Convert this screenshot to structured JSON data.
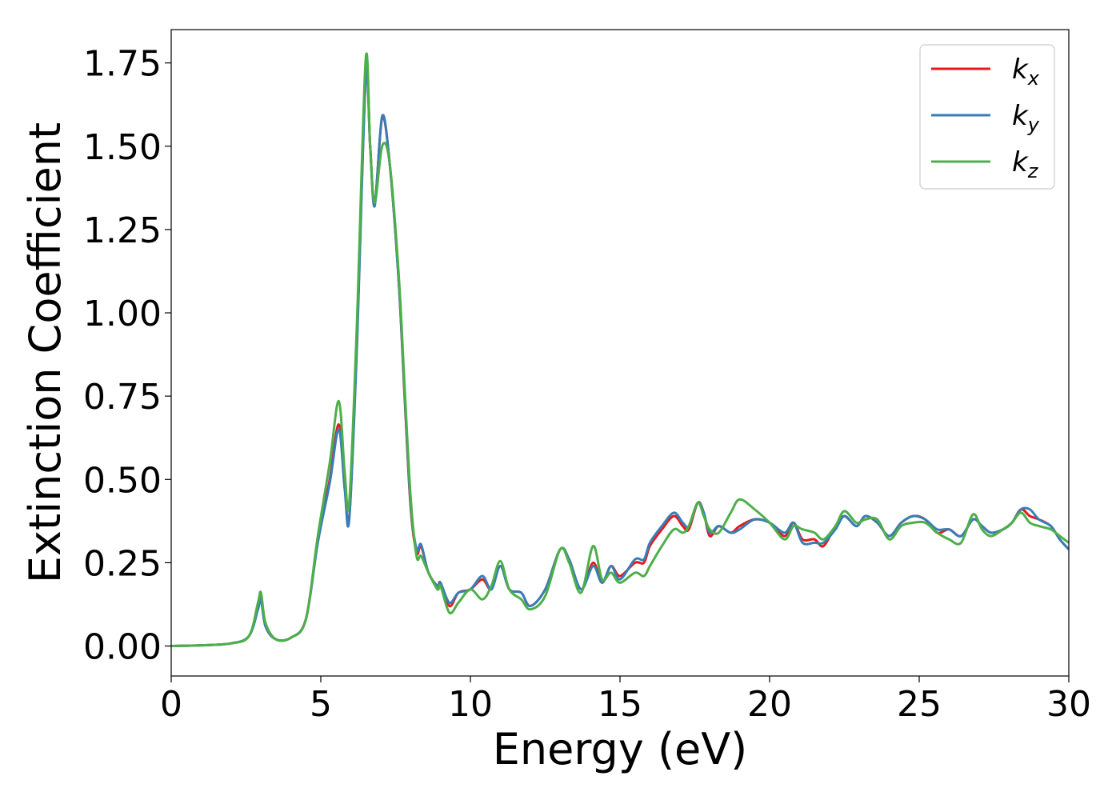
{
  "chart_data": {
    "type": "line",
    "title": "",
    "xlabel": "Energy (eV)",
    "ylabel": "Extinction Coefficient",
    "xlim": [
      0,
      30
    ],
    "ylim": [
      -0.09,
      1.85
    ],
    "xticks": [
      0,
      5,
      10,
      15,
      20,
      25,
      30
    ],
    "xtick_labels": [
      "0",
      "5",
      "10",
      "15",
      "20",
      "25",
      "30"
    ],
    "yticks": [
      0.0,
      0.25,
      0.5,
      0.75,
      1.0,
      1.25,
      1.5,
      1.75
    ],
    "ytick_labels": [
      "0.00",
      "0.25",
      "0.50",
      "0.75",
      "1.00",
      "1.25",
      "1.50",
      "1.75"
    ],
    "grid": false,
    "legend_position": "top-right",
    "series": [
      {
        "name": "k_x",
        "label_base": "k",
        "label_sub": "x",
        "color": "#e41a1c",
        "points": [
          [
            0,
            0.0
          ],
          [
            1,
            0.002
          ],
          [
            2,
            0.008
          ],
          [
            2.6,
            0.03
          ],
          [
            2.9,
            0.12
          ],
          [
            3.0,
            0.15
          ],
          [
            3.15,
            0.06
          ],
          [
            3.5,
            0.02
          ],
          [
            4.0,
            0.025
          ],
          [
            4.5,
            0.08
          ],
          [
            4.9,
            0.32
          ],
          [
            5.3,
            0.5
          ],
          [
            5.6,
            0.665
          ],
          [
            5.8,
            0.48
          ],
          [
            5.95,
            0.385
          ],
          [
            6.2,
            0.9
          ],
          [
            6.5,
            1.71
          ],
          [
            6.65,
            1.5
          ],
          [
            6.8,
            1.325
          ],
          [
            7.05,
            1.585
          ],
          [
            7.3,
            1.45
          ],
          [
            7.6,
            1.1
          ],
          [
            7.8,
            0.75
          ],
          [
            8.0,
            0.42
          ],
          [
            8.2,
            0.28
          ],
          [
            8.35,
            0.3
          ],
          [
            8.6,
            0.22
          ],
          [
            8.9,
            0.18
          ],
          [
            9.0,
            0.19
          ],
          [
            9.3,
            0.12
          ],
          [
            9.6,
            0.16
          ],
          [
            10.0,
            0.17
          ],
          [
            10.4,
            0.2
          ],
          [
            10.7,
            0.17
          ],
          [
            11.0,
            0.24
          ],
          [
            11.3,
            0.17
          ],
          [
            11.7,
            0.16
          ],
          [
            12.0,
            0.12
          ],
          [
            12.5,
            0.17
          ],
          [
            13.0,
            0.29
          ],
          [
            13.3,
            0.26
          ],
          [
            13.7,
            0.17
          ],
          [
            14.1,
            0.25
          ],
          [
            14.4,
            0.19
          ],
          [
            14.7,
            0.24
          ],
          [
            15.0,
            0.21
          ],
          [
            15.5,
            0.25
          ],
          [
            15.8,
            0.25
          ],
          [
            16.0,
            0.3
          ],
          [
            16.4,
            0.35
          ],
          [
            16.8,
            0.39
          ],
          [
            17.1,
            0.36
          ],
          [
            17.3,
            0.35
          ],
          [
            17.6,
            0.43
          ],
          [
            17.8,
            0.4
          ],
          [
            18.0,
            0.33
          ],
          [
            18.3,
            0.36
          ],
          [
            18.7,
            0.34
          ],
          [
            19.0,
            0.36
          ],
          [
            19.5,
            0.38
          ],
          [
            20.0,
            0.37
          ],
          [
            20.5,
            0.33
          ],
          [
            20.8,
            0.37
          ],
          [
            21.1,
            0.32
          ],
          [
            21.5,
            0.32
          ],
          [
            21.8,
            0.3
          ],
          [
            22.2,
            0.36
          ],
          [
            22.5,
            0.39
          ],
          [
            22.9,
            0.36
          ],
          [
            23.2,
            0.39
          ],
          [
            23.6,
            0.37
          ],
          [
            24.0,
            0.33
          ],
          [
            24.4,
            0.37
          ],
          [
            24.8,
            0.39
          ],
          [
            25.2,
            0.38
          ],
          [
            25.6,
            0.34
          ],
          [
            26.0,
            0.35
          ],
          [
            26.4,
            0.33
          ],
          [
            26.8,
            0.38
          ],
          [
            27.1,
            0.36
          ],
          [
            27.4,
            0.34
          ],
          [
            27.8,
            0.35
          ],
          [
            28.1,
            0.37
          ],
          [
            28.4,
            0.41
          ],
          [
            28.7,
            0.39
          ],
          [
            29.0,
            0.38
          ],
          [
            29.4,
            0.36
          ],
          [
            29.7,
            0.32
          ],
          [
            30.0,
            0.29
          ]
        ]
      },
      {
        "name": "k_y",
        "label_base": "k",
        "label_sub": "y",
        "color": "#377eb8",
        "points": [
          [
            0,
            0.0
          ],
          [
            1,
            0.002
          ],
          [
            2,
            0.008
          ],
          [
            2.6,
            0.03
          ],
          [
            2.9,
            0.11
          ],
          [
            3.0,
            0.14
          ],
          [
            3.15,
            0.06
          ],
          [
            3.5,
            0.02
          ],
          [
            4.0,
            0.025
          ],
          [
            4.5,
            0.08
          ],
          [
            4.9,
            0.31
          ],
          [
            5.3,
            0.49
          ],
          [
            5.6,
            0.65
          ],
          [
            5.8,
            0.47
          ],
          [
            5.95,
            0.38
          ],
          [
            6.2,
            0.88
          ],
          [
            6.5,
            1.7
          ],
          [
            6.65,
            1.5
          ],
          [
            6.8,
            1.32
          ],
          [
            7.05,
            1.59
          ],
          [
            7.3,
            1.45
          ],
          [
            7.6,
            1.1
          ],
          [
            7.8,
            0.76
          ],
          [
            8.0,
            0.43
          ],
          [
            8.2,
            0.29
          ],
          [
            8.35,
            0.305
          ],
          [
            8.6,
            0.22
          ],
          [
            8.9,
            0.18
          ],
          [
            9.0,
            0.19
          ],
          [
            9.3,
            0.13
          ],
          [
            9.6,
            0.16
          ],
          [
            10.0,
            0.17
          ],
          [
            10.4,
            0.21
          ],
          [
            10.7,
            0.17
          ],
          [
            11.0,
            0.24
          ],
          [
            11.3,
            0.17
          ],
          [
            11.7,
            0.16
          ],
          [
            12.0,
            0.12
          ],
          [
            12.5,
            0.17
          ],
          [
            13.0,
            0.29
          ],
          [
            13.3,
            0.26
          ],
          [
            13.7,
            0.17
          ],
          [
            14.1,
            0.24
          ],
          [
            14.4,
            0.19
          ],
          [
            14.7,
            0.24
          ],
          [
            15.0,
            0.2
          ],
          [
            15.5,
            0.26
          ],
          [
            15.8,
            0.26
          ],
          [
            16.0,
            0.31
          ],
          [
            16.4,
            0.36
          ],
          [
            16.8,
            0.4
          ],
          [
            17.1,
            0.37
          ],
          [
            17.3,
            0.36
          ],
          [
            17.6,
            0.43
          ],
          [
            17.8,
            0.4
          ],
          [
            18.0,
            0.34
          ],
          [
            18.3,
            0.36
          ],
          [
            18.7,
            0.34
          ],
          [
            19.0,
            0.35
          ],
          [
            19.5,
            0.38
          ],
          [
            20.0,
            0.37
          ],
          [
            20.5,
            0.34
          ],
          [
            20.8,
            0.37
          ],
          [
            21.1,
            0.31
          ],
          [
            21.5,
            0.31
          ],
          [
            21.8,
            0.31
          ],
          [
            22.2,
            0.35
          ],
          [
            22.5,
            0.39
          ],
          [
            22.9,
            0.36
          ],
          [
            23.2,
            0.39
          ],
          [
            23.6,
            0.37
          ],
          [
            24.0,
            0.33
          ],
          [
            24.4,
            0.37
          ],
          [
            24.8,
            0.39
          ],
          [
            25.2,
            0.38
          ],
          [
            25.6,
            0.35
          ],
          [
            26.0,
            0.35
          ],
          [
            26.4,
            0.33
          ],
          [
            26.8,
            0.38
          ],
          [
            27.1,
            0.36
          ],
          [
            27.4,
            0.34
          ],
          [
            27.8,
            0.35
          ],
          [
            28.1,
            0.37
          ],
          [
            28.4,
            0.41
          ],
          [
            28.7,
            0.41
          ],
          [
            29.0,
            0.38
          ],
          [
            29.4,
            0.36
          ],
          [
            29.7,
            0.32
          ],
          [
            30.0,
            0.29
          ]
        ]
      },
      {
        "name": "k_z",
        "label_base": "k",
        "label_sub": "z",
        "color": "#4daf4a",
        "points": [
          [
            0,
            0.0
          ],
          [
            1,
            0.002
          ],
          [
            2,
            0.008
          ],
          [
            2.6,
            0.03
          ],
          [
            2.9,
            0.13
          ],
          [
            3.0,
            0.16
          ],
          [
            3.15,
            0.07
          ],
          [
            3.5,
            0.02
          ],
          [
            4.0,
            0.025
          ],
          [
            4.5,
            0.08
          ],
          [
            4.9,
            0.33
          ],
          [
            5.3,
            0.55
          ],
          [
            5.6,
            0.735
          ],
          [
            5.8,
            0.52
          ],
          [
            5.95,
            0.43
          ],
          [
            6.2,
            0.95
          ],
          [
            6.5,
            1.76
          ],
          [
            6.65,
            1.5
          ],
          [
            6.8,
            1.33
          ],
          [
            7.05,
            1.5
          ],
          [
            7.3,
            1.45
          ],
          [
            7.6,
            1.12
          ],
          [
            7.8,
            0.78
          ],
          [
            8.0,
            0.45
          ],
          [
            8.2,
            0.27
          ],
          [
            8.35,
            0.27
          ],
          [
            8.6,
            0.22
          ],
          [
            8.9,
            0.17
          ],
          [
            9.0,
            0.18
          ],
          [
            9.3,
            0.1
          ],
          [
            9.6,
            0.13
          ],
          [
            10.0,
            0.17
          ],
          [
            10.4,
            0.14
          ],
          [
            10.7,
            0.18
          ],
          [
            11.0,
            0.255
          ],
          [
            11.3,
            0.17
          ],
          [
            11.7,
            0.14
          ],
          [
            12.0,
            0.11
          ],
          [
            12.5,
            0.15
          ],
          [
            13.0,
            0.29
          ],
          [
            13.3,
            0.25
          ],
          [
            13.7,
            0.16
          ],
          [
            14.1,
            0.3
          ],
          [
            14.4,
            0.2
          ],
          [
            14.7,
            0.22
          ],
          [
            15.0,
            0.19
          ],
          [
            15.5,
            0.22
          ],
          [
            15.8,
            0.21
          ],
          [
            16.0,
            0.24
          ],
          [
            16.4,
            0.3
          ],
          [
            16.8,
            0.35
          ],
          [
            17.1,
            0.34
          ],
          [
            17.3,
            0.36
          ],
          [
            17.6,
            0.43
          ],
          [
            17.8,
            0.39
          ],
          [
            18.0,
            0.35
          ],
          [
            18.3,
            0.34
          ],
          [
            18.7,
            0.4
          ],
          [
            19.0,
            0.44
          ],
          [
            19.5,
            0.41
          ],
          [
            20.0,
            0.37
          ],
          [
            20.5,
            0.32
          ],
          [
            20.8,
            0.36
          ],
          [
            21.1,
            0.35
          ],
          [
            21.5,
            0.34
          ],
          [
            21.8,
            0.32
          ],
          [
            22.2,
            0.36
          ],
          [
            22.5,
            0.405
          ],
          [
            22.9,
            0.37
          ],
          [
            23.2,
            0.38
          ],
          [
            23.6,
            0.38
          ],
          [
            24.0,
            0.32
          ],
          [
            24.4,
            0.36
          ],
          [
            24.8,
            0.37
          ],
          [
            25.2,
            0.37
          ],
          [
            25.6,
            0.34
          ],
          [
            26.0,
            0.32
          ],
          [
            26.4,
            0.31
          ],
          [
            26.8,
            0.395
          ],
          [
            27.1,
            0.35
          ],
          [
            27.4,
            0.33
          ],
          [
            27.8,
            0.35
          ],
          [
            28.1,
            0.37
          ],
          [
            28.4,
            0.4
          ],
          [
            28.7,
            0.37
          ],
          [
            29.0,
            0.36
          ],
          [
            29.4,
            0.35
          ],
          [
            29.7,
            0.33
          ],
          [
            30.0,
            0.31
          ]
        ]
      }
    ]
  }
}
